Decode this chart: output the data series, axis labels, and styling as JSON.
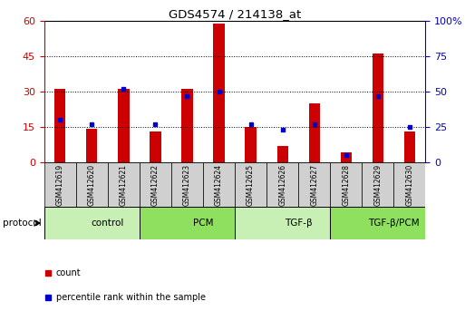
{
  "title": "GDS4574 / 214138_at",
  "samples": [
    "GSM412619",
    "GSM412620",
    "GSM412621",
    "GSM412622",
    "GSM412623",
    "GSM412624",
    "GSM412625",
    "GSM412626",
    "GSM412627",
    "GSM412628",
    "GSM412629",
    "GSM412630"
  ],
  "counts": [
    31,
    14,
    31,
    13,
    31,
    59,
    15,
    7,
    25,
    4,
    46,
    13
  ],
  "percentile_ranks": [
    30,
    27,
    52,
    27,
    47,
    50,
    27,
    23,
    27,
    5,
    47,
    25
  ],
  "groups": [
    {
      "label": "control",
      "start": 0,
      "end": 3,
      "color": "#c8f0b4"
    },
    {
      "label": "PCM",
      "start": 3,
      "end": 6,
      "color": "#90e060"
    },
    {
      "label": "TGF-β",
      "start": 6,
      "end": 9,
      "color": "#c8f0b4"
    },
    {
      "label": "TGF-β/PCM",
      "start": 9,
      "end": 12,
      "color": "#90e060"
    }
  ],
  "left_yaxis": {
    "min": 0,
    "max": 60,
    "ticks": [
      0,
      15,
      30,
      45,
      60
    ],
    "color": "#cc0000"
  },
  "right_yaxis": {
    "min": 0,
    "max": 100,
    "ticks": [
      0,
      25,
      50,
      75,
      100
    ],
    "color": "#0000cc"
  },
  "bar_color": "#cc0000",
  "dot_color": "#0000cc",
  "bar_width": 0.35,
  "protocol_label": "protocol",
  "legend": [
    {
      "label": "count",
      "color": "#cc0000"
    },
    {
      "label": "percentile rank within the sample",
      "color": "#0000cc"
    }
  ],
  "group_colors_light": "#c8f0b4",
  "group_colors_dark": "#90e060",
  "sample_box_color": "#d0d0d0"
}
